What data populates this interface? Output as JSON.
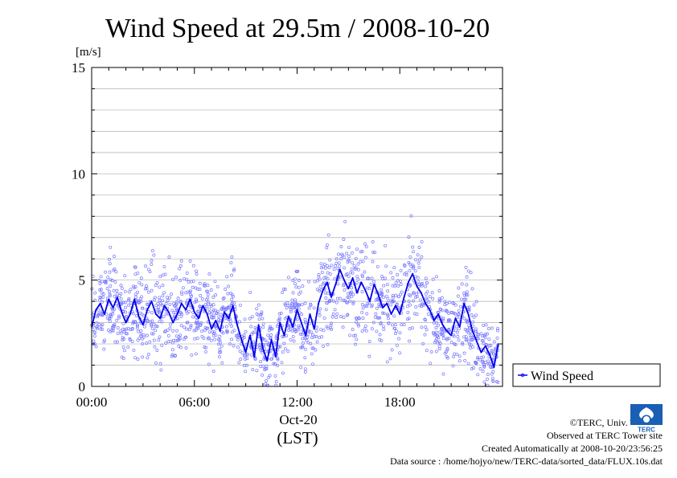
{
  "chart_data": {
    "type": "scatter",
    "title": "Wind Speed at 29.5m / 2008-10-20",
    "ylabel": "[m/s]",
    "xlabel": "(LST)",
    "date_label": "Oct-20",
    "ylim": [
      0,
      15
    ],
    "xlim": [
      0,
      24
    ],
    "y_ticks": [
      "0",
      "5",
      "10",
      "15"
    ],
    "x_ticks": [
      "00:00",
      "06:00",
      "12:00",
      "18:00"
    ],
    "grid": true,
    "legend": {
      "position": "right",
      "entries": [
        "Wind Speed"
      ]
    },
    "colors": {
      "line": "#0000ee",
      "points": "#7777ff"
    },
    "series": [
      {
        "name": "Wind Speed",
        "x": [
          0.0,
          0.25,
          0.5,
          0.75,
          1.0,
          1.25,
          1.5,
          1.75,
          2.0,
          2.25,
          2.5,
          2.75,
          3.0,
          3.25,
          3.5,
          3.75,
          4.0,
          4.25,
          4.5,
          4.75,
          5.0,
          5.25,
          5.5,
          5.75,
          6.0,
          6.25,
          6.5,
          6.75,
          7.0,
          7.25,
          7.5,
          7.75,
          8.0,
          8.25,
          8.5,
          8.75,
          9.0,
          9.25,
          9.5,
          9.75,
          10.0,
          10.25,
          10.5,
          10.75,
          11.0,
          11.25,
          11.5,
          11.75,
          12.0,
          12.25,
          12.5,
          12.75,
          13.0,
          13.25,
          13.5,
          13.75,
          14.0,
          14.25,
          14.5,
          14.75,
          15.0,
          15.25,
          15.5,
          15.75,
          16.0,
          16.25,
          16.5,
          16.75,
          17.0,
          17.25,
          17.5,
          17.75,
          18.0,
          18.25,
          18.5,
          18.75,
          19.0,
          19.25,
          19.5,
          19.75,
          20.0,
          20.25,
          20.5,
          20.75,
          21.0,
          21.25,
          21.5,
          21.75,
          22.0,
          22.25,
          22.5,
          22.75,
          23.0,
          23.25,
          23.5,
          23.75
        ],
        "values": [
          2.8,
          3.6,
          3.9,
          3.4,
          4.1,
          3.7,
          4.2,
          3.5,
          3.0,
          3.4,
          4.1,
          3.3,
          2.9,
          3.6,
          4.0,
          3.4,
          3.2,
          3.8,
          3.5,
          3.0,
          3.4,
          3.9,
          3.6,
          4.1,
          3.5,
          3.2,
          3.8,
          3.4,
          2.7,
          3.1,
          2.6,
          3.5,
          3.2,
          3.8,
          2.9,
          2.2,
          1.6,
          2.4,
          1.4,
          2.9,
          1.8,
          1.2,
          2.2,
          1.4,
          3.0,
          2.4,
          3.3,
          2.8,
          3.6,
          3.0,
          2.4,
          3.4,
          2.7,
          3.9,
          4.5,
          4.9,
          4.2,
          4.8,
          5.5,
          5.0,
          4.6,
          5.1,
          4.4,
          4.9,
          4.5,
          4.0,
          4.8,
          4.3,
          3.7,
          3.9,
          3.4,
          3.8,
          3.4,
          4.2,
          4.9,
          5.3,
          4.7,
          4.4,
          3.9,
          3.6,
          3.1,
          3.4,
          2.9,
          2.6,
          2.4,
          3.2,
          2.8,
          3.9,
          3.4,
          2.6,
          2.1,
          1.6,
          1.9,
          1.5,
          0.9,
          2.0
        ]
      }
    ]
  },
  "credits": {
    "copyright": "©TERC, Univ. Tsukuba",
    "observed": "Observed at TERC Tower site",
    "created": "Created Automatically at 2008-10-20/23:56:25",
    "source": "Data source : /home/hojyo/new/TERC-data/sorted_data/FLUX.10s.dat"
  },
  "logo": {
    "label": "TERC",
    "icon": "terc-logo-icon"
  }
}
